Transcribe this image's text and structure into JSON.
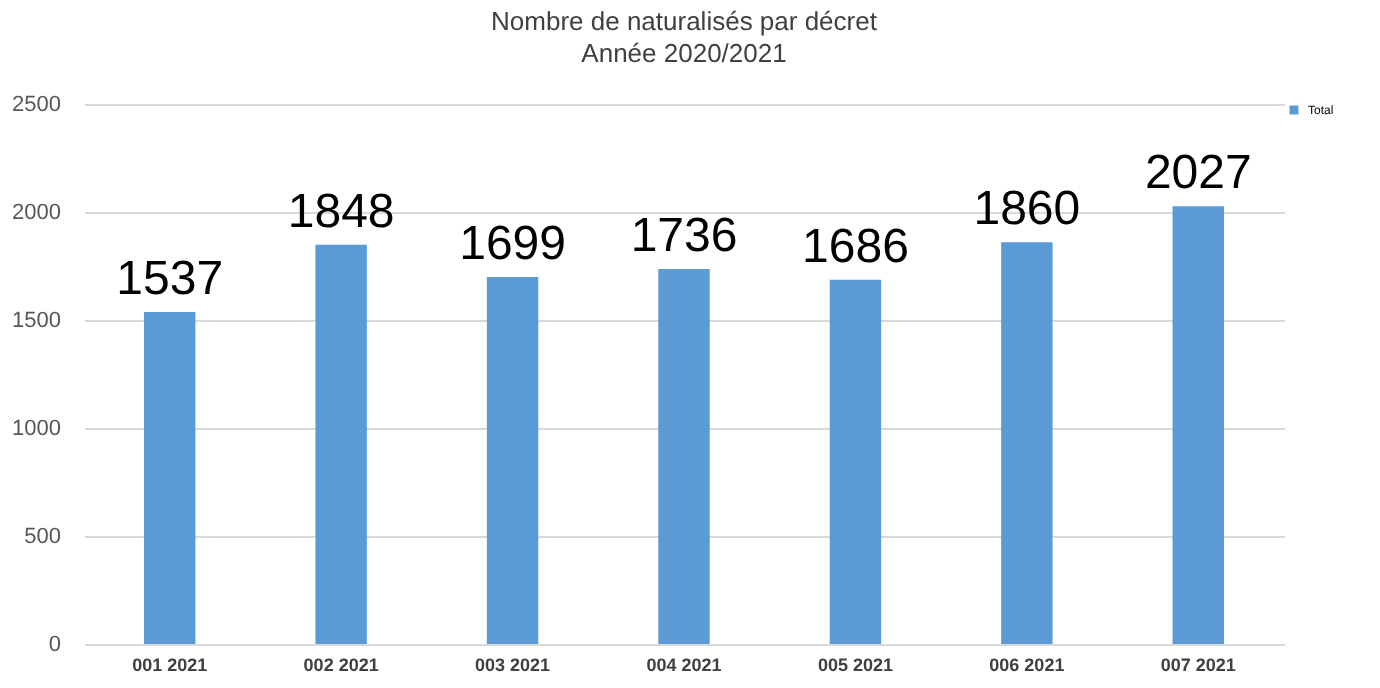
{
  "chart_data": {
    "type": "bar",
    "title": "Nombre de naturalisés par décret",
    "subtitle": "Année 2020/2021",
    "categories": [
      "001 2021",
      "002 2021",
      "003 2021",
      "004 2021",
      "005 2021",
      "006 2021",
      "007 2021"
    ],
    "series": [
      {
        "name": "Total",
        "color": "#5b9bd5",
        "values": [
          1537,
          1848,
          1699,
          1736,
          1686,
          1860,
          2027
        ]
      }
    ],
    "ylim": [
      0,
      2500
    ],
    "yticks": [
      0,
      500,
      1000,
      1500,
      2000,
      2500
    ],
    "grid": "y",
    "legend": "right",
    "data_labels": true
  }
}
